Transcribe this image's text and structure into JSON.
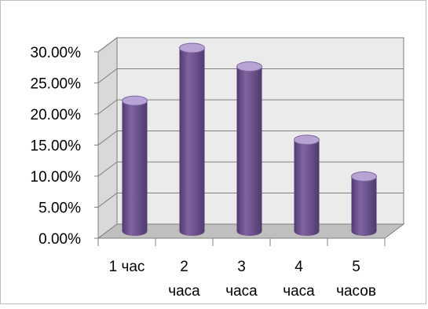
{
  "chart_data": {
    "type": "bar",
    "style": "3d-cylinder",
    "categories": [
      "1 час",
      "2 часа",
      "3 часа",
      "4 часа",
      "5 часов"
    ],
    "category_lines": [
      [
        "1 час"
      ],
      [
        "2",
        "часа"
      ],
      [
        "3",
        "часа"
      ],
      [
        "4",
        "часа"
      ],
      [
        "5",
        "часов"
      ]
    ],
    "values": [
      21.0,
      29.5,
      26.5,
      14.7,
      8.8
    ],
    "y_ticks": [
      "0.00%",
      "5.00%",
      "10.00%",
      "15.00%",
      "20.00%",
      "25.00%",
      "30.00%"
    ],
    "ylim": [
      0,
      30
    ],
    "grid": true,
    "legend": "none",
    "colors": {
      "bar_main": "#8064a2",
      "bar_dark": "#4f3b6e",
      "bar_light": "#b7a3d4",
      "wall": "#ebebeb",
      "floor": "#bfbfbf",
      "grid": "#7f7f7f"
    }
  }
}
